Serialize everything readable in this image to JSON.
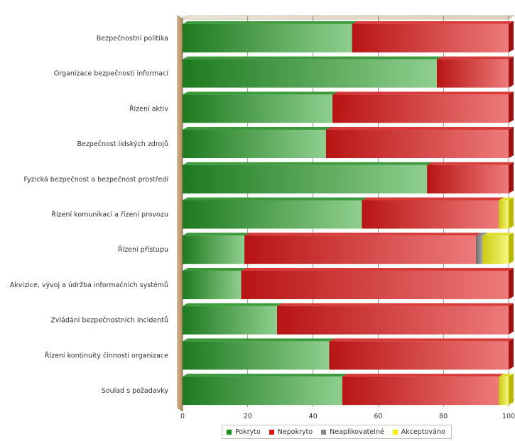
{
  "chart_data": {
    "type": "bar",
    "orientation": "horizontal",
    "stacked": true,
    "categories": [
      "Bezpečnostní politika",
      "Organizace bezpečnosti informací",
      "Řízení aktiv",
      "Bezpečnost lidských zdrojů",
      "Fyzická bezpečnost a bezpečnost prostředí",
      "Řízení komunikací a řízení provozu",
      "Řízení přístupu",
      "Akvizice, vývoj a údržba informačních systémů",
      "Zvládání bezpečnostních incidentů",
      "Řízení kontinuity činností organizace",
      "Soulad s požadavky"
    ],
    "series": [
      {
        "name": "Pokryto",
        "color": "#2e8b2e",
        "values": [
          52,
          78,
          46,
          44,
          75,
          55,
          19,
          18,
          29,
          45,
          49
        ]
      },
      {
        "name": "Nepokryto",
        "color": "#dd2222",
        "values": [
          48,
          22,
          54,
          56,
          25,
          42,
          71,
          82,
          71,
          55,
          48
        ]
      },
      {
        "name": "Neaplikovatelné",
        "color": "#888888",
        "values": [
          0,
          0,
          0,
          0,
          0,
          0,
          2,
          0,
          0,
          0,
          0
        ]
      },
      {
        "name": "Akceptováno",
        "color": "#e8e81a",
        "values": [
          0,
          0,
          0,
          0,
          0,
          3,
          8,
          0,
          0,
          0,
          3
        ]
      }
    ],
    "xlim": [
      0,
      100
    ],
    "xticks": [
      "0",
      "20",
      "40",
      "60",
      "80",
      "100"
    ],
    "grid": true,
    "legend_position": "bottom"
  }
}
